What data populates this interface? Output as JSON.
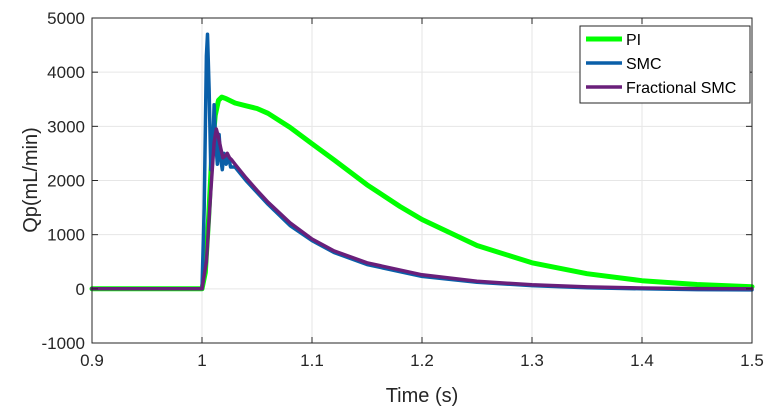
{
  "chart_data": {
    "type": "line",
    "xlabel": "Time (s)",
    "ylabel": "Qp(mL/min)",
    "xlim": [
      0.9,
      1.5
    ],
    "ylim": [
      -1000,
      5000
    ],
    "xticks": [
      0.9,
      1.0,
      1.1,
      1.2,
      1.3,
      1.4,
      1.5
    ],
    "xtick_labels": [
      "0.9",
      "1",
      "1.1",
      "1.2",
      "1.3",
      "1.4",
      "1.5"
    ],
    "yticks": [
      -1000,
      0,
      1000,
      2000,
      3000,
      4000,
      5000
    ],
    "ytick_labels": [
      "-1000",
      "0",
      "1000",
      "2000",
      "3000",
      "4000",
      "5000"
    ],
    "grid": true,
    "legend_position": "top-right",
    "series": [
      {
        "name": "PI",
        "color": "#00ff00",
        "x": [
          0.9,
          1.0,
          1.003,
          1.006,
          1.009,
          1.012,
          1.015,
          1.018,
          1.022,
          1.03,
          1.04,
          1.05,
          1.06,
          1.08,
          1.1,
          1.12,
          1.15,
          1.18,
          1.2,
          1.25,
          1.3,
          1.35,
          1.4,
          1.45,
          1.5
        ],
        "y": [
          0,
          0,
          300,
          1300,
          2500,
          3200,
          3480,
          3540,
          3510,
          3430,
          3380,
          3330,
          3240,
          2980,
          2680,
          2380,
          1920,
          1520,
          1280,
          800,
          480,
          280,
          150,
          80,
          40
        ]
      },
      {
        "name": "SMC",
        "color": "#0a5fa8",
        "x": [
          0.9,
          1.0,
          1.002,
          1.004,
          1.005,
          1.0065,
          1.008,
          1.0095,
          1.011,
          1.0125,
          1.014,
          1.0155,
          1.017,
          1.0185,
          1.02,
          1.022,
          1.024,
          1.026,
          1.03,
          1.04,
          1.05,
          1.06,
          1.08,
          1.1,
          1.12,
          1.15,
          1.2,
          1.25,
          1.3,
          1.35,
          1.4,
          1.45,
          1.5
        ],
        "y": [
          0,
          0,
          1500,
          4300,
          4700,
          3700,
          2200,
          2400,
          3400,
          2700,
          2300,
          2850,
          2400,
          2200,
          2500,
          2300,
          2450,
          2250,
          2250,
          2000,
          1780,
          1560,
          1170,
          890,
          670,
          450,
          230,
          120,
          60,
          20,
          0,
          -15,
          -20
        ]
      },
      {
        "name": "Fractional SMC",
        "color": "#6a1f7a",
        "x": [
          0.9,
          1.0,
          1.004,
          1.008,
          1.011,
          1.013,
          1.015,
          1.017,
          1.019,
          1.021,
          1.023,
          1.025,
          1.027,
          1.03,
          1.04,
          1.05,
          1.06,
          1.08,
          1.1,
          1.12,
          1.15,
          1.2,
          1.25,
          1.3,
          1.35,
          1.4,
          1.45,
          1.5
        ],
        "y": [
          0,
          0,
          500,
          1800,
          2700,
          2950,
          2800,
          2600,
          2420,
          2450,
          2500,
          2420,
          2380,
          2300,
          2050,
          1820,
          1600,
          1220,
          920,
          700,
          480,
          260,
          140,
          75,
          35,
          15,
          5,
          0
        ]
      }
    ]
  }
}
